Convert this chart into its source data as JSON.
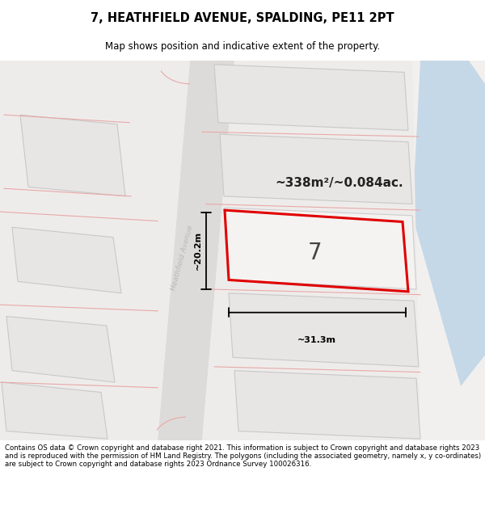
{
  "title": "7, HEATHFIELD AVENUE, SPALDING, PE11 2PT",
  "subtitle": "Map shows position and indicative extent of the property.",
  "footer": "Contains OS data © Crown copyright and database right 2021. This information is subject to Crown copyright and database rights 2023 and is reproduced with the permission of HM Land Registry. The polygons (including the associated geometry, namely x, y co-ordinates) are subject to Crown copyright and database rights 2023 Ordnance Survey 100026316.",
  "area_label": "~338m²/~0.084ac.",
  "width_label": "~31.3m",
  "height_label": "~20.2m",
  "street_label": "Heathfield Avenue",
  "plot_number": "7",
  "map_bg": "#f2f0ee",
  "road_fill": "#e0dedd",
  "road_line_color": "#e8a8a8",
  "plot_fill": "#f0eeec",
  "plot_edge": "#e00000",
  "water_color": "#c5d8e8",
  "block_fill": "#e8e6e4",
  "block_edge": "#c8c8c8",
  "dim_color": "#000000",
  "title_fontsize": 10.5,
  "subtitle_fontsize": 8.5,
  "footer_fontsize": 6.2,
  "street_label_color": "#b8b8b8",
  "number_color": "#444444",
  "area_color": "#222222"
}
